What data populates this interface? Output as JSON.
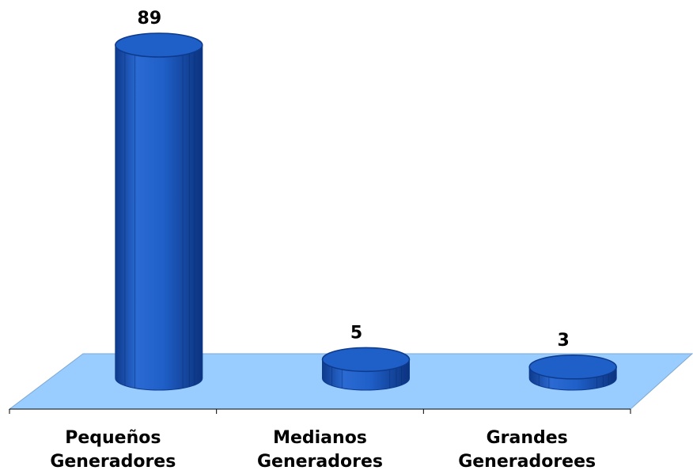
{
  "chart_data": {
    "type": "bar",
    "style": "3d-cylinder",
    "categories": [
      [
        "Pequeños",
        "Generadores"
      ],
      [
        "Medianos",
        "Generadores"
      ],
      [
        "Grandes",
        "Generadorees"
      ]
    ],
    "values": [
      89,
      5,
      3
    ],
    "data_labels": [
      "89",
      "5",
      "3"
    ],
    "ylim": [
      0,
      89
    ],
    "grid": false,
    "legend": "none",
    "colors": {
      "bar": "#1F5FC8",
      "bar_dark": "#0E3A8C",
      "bar_light": "#3C7BDE",
      "floor": "#99CCFF",
      "floor_edge": "#000000"
    }
  }
}
